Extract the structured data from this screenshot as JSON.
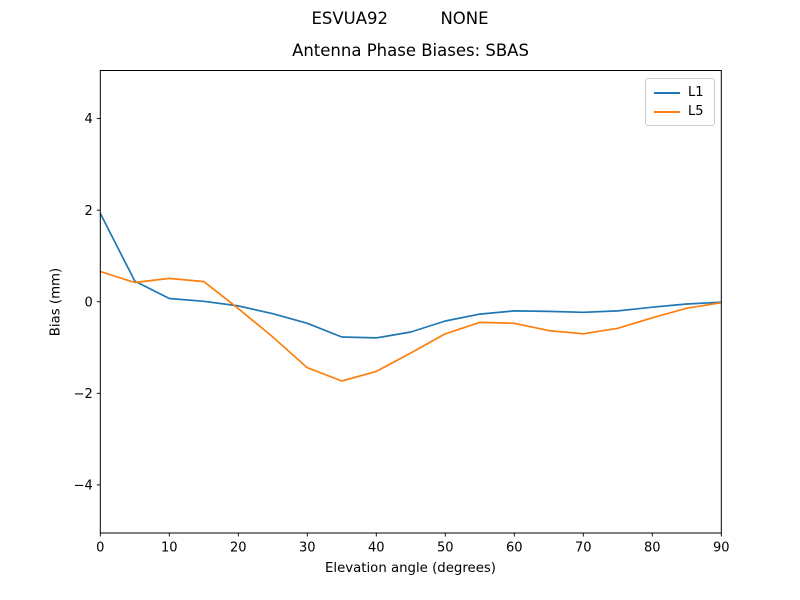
{
  "chart_data": {
    "type": "line",
    "suptitle": "ESVUA92          NONE",
    "title": "Antenna Phase Biases: SBAS",
    "xlabel": "Elevation angle (degrees)",
    "ylabel": "Bias (mm)",
    "xlim": [
      0,
      90
    ],
    "ylim": [
      -5.05,
      5.05
    ],
    "xticks": [
      0,
      10,
      20,
      30,
      40,
      50,
      60,
      70,
      80,
      90
    ],
    "yticks": [
      -4,
      -2,
      0,
      2,
      4
    ],
    "grid": false,
    "background": "#ffffff",
    "axis_color": "#000000",
    "legend": {
      "position": "upper right",
      "entries": [
        "L1",
        "L5"
      ]
    },
    "x": [
      0,
      5,
      10,
      15,
      20,
      25,
      30,
      35,
      40,
      45,
      50,
      55,
      60,
      65,
      70,
      75,
      80,
      85,
      90
    ],
    "series": [
      {
        "name": "L1",
        "color": "#1f77b4",
        "values": [
          1.93,
          0.45,
          0.07,
          0.01,
          -0.09,
          -0.26,
          -0.47,
          -0.77,
          -0.79,
          -0.66,
          -0.42,
          -0.27,
          -0.2,
          -0.21,
          -0.23,
          -0.2,
          -0.12,
          -0.05,
          -0.01
        ]
      },
      {
        "name": "L5",
        "color": "#ff7f0e",
        "values": [
          0.66,
          0.42,
          0.51,
          0.44,
          -0.15,
          -0.77,
          -1.44,
          -1.73,
          -1.52,
          -1.12,
          -0.7,
          -0.45,
          -0.47,
          -0.63,
          -0.7,
          -0.58,
          -0.35,
          -0.14,
          -0.02
        ]
      }
    ]
  }
}
